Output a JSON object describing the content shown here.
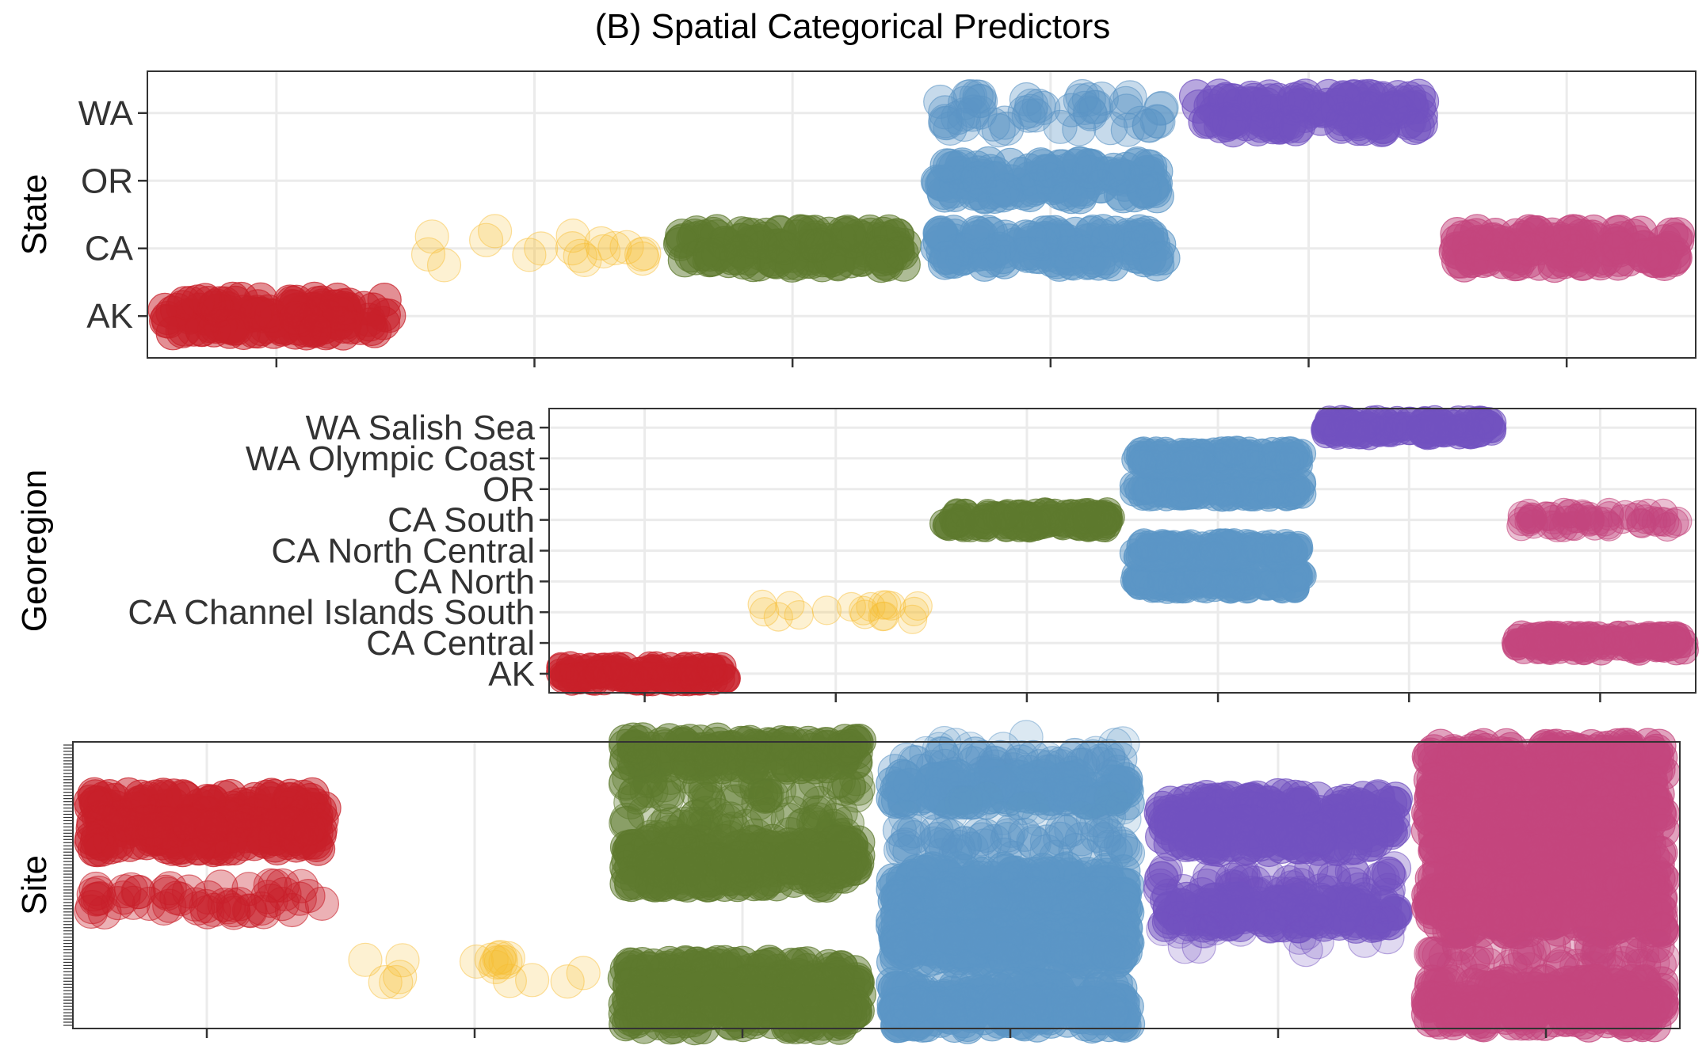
{
  "chart_data": {
    "type": "scatter",
    "title": "(B) Spatial Categorical Predictors",
    "style": "jittered strip plot, one color per state group, x ticks unlabeled",
    "colors": {
      "AK": "#c8202a",
      "CA_ChannelIslands": "#f8be33",
      "CA_green": "#5e7a2e",
      "OR": "#5b95c5",
      "WA": "#7251c0",
      "CA_pink": "#c4467d"
    },
    "panels": [
      {
        "name": "state",
        "ylabel": "State",
        "y_categories": [
          "AK",
          "CA",
          "OR",
          "WA"
        ],
        "x_groups": 6,
        "strips": [
          {
            "group": 1,
            "y": "AK",
            "color": "#c8202a",
            "density": "dense"
          },
          {
            "group": 2,
            "y": "CA",
            "color": "#f8be33",
            "density": "sparse"
          },
          {
            "group": 3,
            "y": "CA",
            "color": "#5e7a2e",
            "density": "dense"
          },
          {
            "group": 4,
            "y": "CA",
            "color": "#5b95c5",
            "density": "dense"
          },
          {
            "group": 4,
            "y": "OR",
            "color": "#5b95c5",
            "density": "dense"
          },
          {
            "group": 4,
            "y": "WA",
            "color": "#5b95c5",
            "density": "medium"
          },
          {
            "group": 5,
            "y": "WA",
            "color": "#7251c0",
            "density": "dense"
          },
          {
            "group": 6,
            "y": "CA",
            "color": "#c4467d",
            "density": "dense"
          }
        ]
      },
      {
        "name": "georegion",
        "ylabel": "Georegion",
        "y_categories": [
          "AK",
          "CA Central",
          "CA Channel Islands South",
          "CA North",
          "CA North Central",
          "CA South",
          "OR",
          "WA Olympic Coast",
          "WA Salish Sea"
        ],
        "x_groups": 6,
        "strips": [
          {
            "group": 1,
            "y": "AK",
            "color": "#c8202a",
            "density": "dense"
          },
          {
            "group": 2,
            "y": "CA Channel Islands South",
            "color": "#f8be33",
            "density": "sparse"
          },
          {
            "group": 3,
            "y": "CA South",
            "color": "#5e7a2e",
            "density": "dense"
          },
          {
            "group": 4,
            "y": "CA North",
            "color": "#5b95c5",
            "density": "dense"
          },
          {
            "group": 4,
            "y": "CA North Central",
            "color": "#5b95c5",
            "density": "dense"
          },
          {
            "group": 4,
            "y": "OR",
            "color": "#5b95c5",
            "density": "dense"
          },
          {
            "group": 4,
            "y": "WA Olympic Coast",
            "color": "#5b95c5",
            "density": "dense"
          },
          {
            "group": 5,
            "y": "WA Salish Sea",
            "color": "#7251c0",
            "density": "dense"
          },
          {
            "group": 6,
            "y": "CA Central",
            "color": "#c4467d",
            "density": "dense"
          },
          {
            "group": 6,
            "y": "CA South",
            "color": "#c4467d",
            "density": "medium"
          }
        ]
      },
      {
        "name": "site",
        "ylabel": "Site",
        "y_range": [
          0,
          100
        ],
        "x_groups": 6,
        "strips": [
          {
            "group": 1,
            "y": 78,
            "color": "#c8202a",
            "density": "dense"
          },
          {
            "group": 1,
            "y": 68,
            "color": "#c8202a",
            "density": "dense"
          },
          {
            "group": 1,
            "y": 45,
            "color": "#c8202a",
            "density": "medium"
          },
          {
            "group": 2,
            "y": 19,
            "color": "#f8be33",
            "density": "sparse"
          },
          {
            "group": 3,
            "y": 98,
            "color": "#5e7a2e",
            "density": "dense"
          },
          {
            "group": 3,
            "y": 85,
            "color": "#5e7a2e",
            "density": "medium"
          },
          {
            "group": 3,
            "y": 72,
            "color": "#5e7a2e",
            "density": "medium"
          },
          {
            "group": 3,
            "y": 61,
            "color": "#5e7a2e",
            "density": "dense"
          },
          {
            "group": 3,
            "y": 55,
            "color": "#5e7a2e",
            "density": "dense"
          },
          {
            "group": 3,
            "y": 17,
            "color": "#5e7a2e",
            "density": "dense"
          },
          {
            "group": 3,
            "y": 10,
            "color": "#5e7a2e",
            "density": "dense"
          },
          {
            "group": 3,
            "y": 3,
            "color": "#5e7a2e",
            "density": "dense"
          },
          {
            "group": 4,
            "y": 99,
            "color": "#5b95c5",
            "density": "sparse"
          },
          {
            "group": 4,
            "y": 93,
            "color": "#5b95c5",
            "density": "medium"
          },
          {
            "group": 4,
            "y": 85,
            "color": "#5b95c5",
            "density": "dense"
          },
          {
            "group": 4,
            "y": 77,
            "color": "#5b95c5",
            "density": "sparse"
          },
          {
            "group": 4,
            "y": 65,
            "color": "#5b95c5",
            "density": "medium"
          },
          {
            "group": 4,
            "y": 51,
            "color": "#5b95c5",
            "density": "dense"
          },
          {
            "group": 4,
            "y": 42,
            "color": "#5b95c5",
            "density": "dense"
          },
          {
            "group": 4,
            "y": 31,
            "color": "#5b95c5",
            "density": "dense"
          },
          {
            "group": 4,
            "y": 27,
            "color": "#5b95c5",
            "density": "dense"
          },
          {
            "group": 4,
            "y": 9,
            "color": "#5b95c5",
            "density": "dense"
          },
          {
            "group": 4,
            "y": 3,
            "color": "#5b95c5",
            "density": "dense"
          },
          {
            "group": 5,
            "y": 78,
            "color": "#7251c0",
            "density": "dense"
          },
          {
            "group": 5,
            "y": 68,
            "color": "#7251c0",
            "density": "dense"
          },
          {
            "group": 5,
            "y": 51,
            "color": "#7251c0",
            "density": "medium"
          },
          {
            "group": 5,
            "y": 40,
            "color": "#7251c0",
            "density": "dense"
          },
          {
            "group": 5,
            "y": 31,
            "color": "#7251c0",
            "density": "sparse"
          },
          {
            "group": 6,
            "y": 96,
            "color": "#c4467d",
            "density": "dense"
          },
          {
            "group": 6,
            "y": 84,
            "color": "#c4467d",
            "density": "dense"
          },
          {
            "group": 6,
            "y": 72,
            "color": "#c4467d",
            "density": "dense"
          },
          {
            "group": 6,
            "y": 60,
            "color": "#c4467d",
            "density": "dense"
          },
          {
            "group": 6,
            "y": 48,
            "color": "#c4467d",
            "density": "dense"
          },
          {
            "group": 6,
            "y": 38,
            "color": "#c4467d",
            "density": "dense"
          },
          {
            "group": 6,
            "y": 24,
            "color": "#c4467d",
            "density": "medium"
          },
          {
            "group": 6,
            "y": 10,
            "color": "#c4467d",
            "density": "dense"
          },
          {
            "group": 6,
            "y": 4,
            "color": "#c4467d",
            "density": "dense"
          }
        ]
      }
    ],
    "grid": true,
    "legend": "none"
  }
}
